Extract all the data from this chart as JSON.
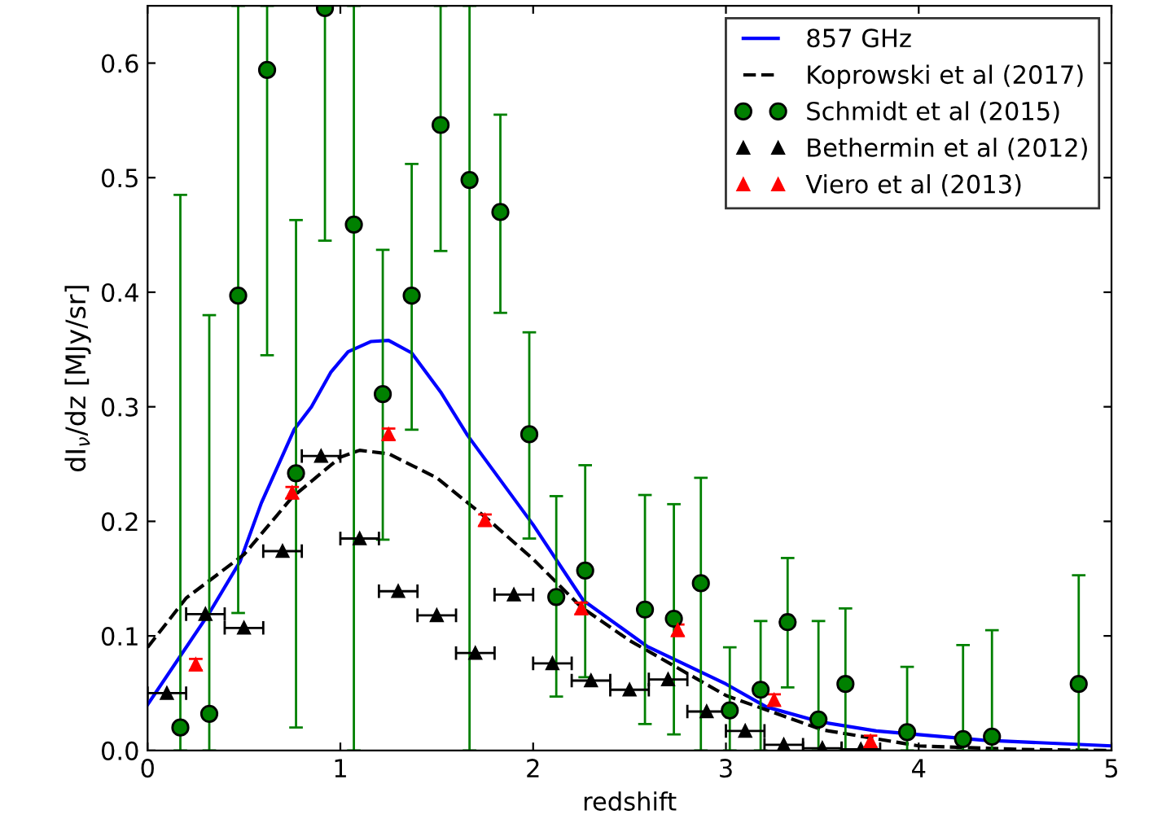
{
  "chart_data": {
    "type": "line",
    "xlabel": "redshift",
    "ylabel": "dI$_{ν}$/dz [MJy/sr]",
    "xlim": [
      0,
      5
    ],
    "ylim": [
      0,
      0.65
    ],
    "xticks": [
      0,
      1,
      2,
      3,
      4,
      5
    ],
    "yticks": [
      {
        "value": 0,
        "label": "0.0"
      },
      0.1,
      0.2,
      0.3,
      0.4,
      0.5,
      0.6
    ],
    "grid": false,
    "legend": "top right",
    "series": [
      {
        "name": "857 GHz",
        "color": "#0000ff",
        "line_style": "solid",
        "marker": "none",
        "x": [
          0,
          0.32,
          0.48,
          0.59,
          0.76,
          0.85,
          0.95,
          1.04,
          1.16,
          1.25,
          1.37,
          1.52,
          1.66,
          2.0,
          2.26,
          2.59,
          3.0,
          3.21,
          3.49,
          3.78,
          4.33,
          5
        ],
        "values": [
          0.04,
          0.12,
          0.165,
          0.216,
          0.28,
          0.3,
          0.33,
          0.348,
          0.357,
          0.358,
          0.347,
          0.313,
          0.275,
          0.197,
          0.131,
          0.091,
          0.058,
          0.038,
          0.025,
          0.017,
          0.009,
          0.004
        ]
      },
      {
        "name": "Koprowski et al (2017)",
        "color": "#000000",
        "line_style": "dashed",
        "marker": "none",
        "x": [
          0,
          0.2,
          0.5,
          0.75,
          1.0,
          1.1,
          1.25,
          1.5,
          1.75,
          2.0,
          2.25,
          2.5,
          2.75,
          3.0,
          3.5,
          4.0,
          4.5,
          5
        ],
        "values": [
          0.09,
          0.133,
          0.171,
          0.221,
          0.256,
          0.262,
          0.259,
          0.238,
          0.204,
          0.167,
          0.125,
          0.096,
          0.072,
          0.048,
          0.018,
          0.004,
          0.001,
          0.0
        ]
      },
      {
        "name": "Schmidt et al (2015)",
        "type": "scatter",
        "color": "#008000",
        "marker": "circle",
        "x": [
          0.17,
          0.32,
          0.47,
          0.62,
          0.77,
          0.92,
          1.07,
          1.22,
          1.37,
          1.52,
          1.67,
          1.83,
          1.98,
          2.12,
          2.27,
          2.58,
          2.73,
          2.87,
          3.02,
          3.18,
          3.32,
          3.48,
          3.62,
          3.94,
          4.23,
          4.38,
          4.83
        ],
        "values": [
          0.02,
          0.032,
          0.397,
          0.594,
          0.242,
          0.648,
          0.459,
          0.311,
          0.397,
          0.546,
          0.498,
          0.47,
          0.276,
          0.134,
          0.157,
          0.123,
          0.115,
          0.146,
          0.035,
          0.053,
          0.112,
          0.027,
          0.058,
          0.016,
          0.01,
          0.012,
          0.058
        ],
        "errors": [
          [
            0,
            0.485
          ],
          [
            0,
            0.38
          ],
          [
            0.12,
            0.65
          ],
          [
            0.345,
            0.65
          ],
          [
            0.02,
            0.463
          ],
          [
            0.445,
            0.65
          ],
          [
            0,
            0.65
          ],
          [
            0.184,
            0.437
          ],
          [
            0.28,
            0.512
          ],
          [
            0.436,
            0.65
          ],
          [
            0,
            0.65
          ],
          [
            0.382,
            0.555
          ],
          [
            0.185,
            0.365
          ],
          [
            0.047,
            0.222
          ],
          [
            0.064,
            0.249
          ],
          [
            0.023,
            0.223
          ],
          [
            0.014,
            0.215
          ],
          [
            0,
            0.238
          ],
          [
            0,
            0.09
          ],
          [
            0,
            0.113
          ],
          [
            0.055,
            0.168
          ],
          [
            0,
            0.113
          ],
          [
            0,
            0.124
          ],
          [
            0,
            0.073
          ],
          [
            0,
            0.092
          ],
          [
            0,
            0.105
          ],
          [
            0,
            0.153
          ]
        ]
      },
      {
        "name": "Bethermin et al (2012)",
        "type": "scatter",
        "color": "#000000",
        "marker": "triangle",
        "x": [
          0.1,
          0.3,
          0.5,
          0.7,
          0.9,
          1.1,
          1.3,
          1.5,
          1.7,
          1.9,
          2.1,
          2.3,
          2.5,
          2.7,
          2.9,
          3.1,
          3.3,
          3.5,
          3.7
        ],
        "values": [
          0.05,
          0.119,
          0.107,
          0.174,
          0.257,
          0.185,
          0.139,
          0.118,
          0.085,
          0.136,
          0.076,
          0.061,
          0.053,
          0.062,
          0.034,
          0.017,
          0.005,
          0.002,
          0.001
        ],
        "xerrors": [
          0.1,
          0.1,
          0.1,
          0.1,
          0.1,
          0.1,
          0.1,
          0.1,
          0.1,
          0.1,
          0.1,
          0.1,
          0.1,
          0.1,
          0.1,
          0.1,
          0.1,
          0.1,
          0.1
        ]
      },
      {
        "name": "Viero et al (2013)",
        "type": "scatter",
        "color": "#ff0000",
        "marker": "triangle",
        "x": [
          0.25,
          0.75,
          1.25,
          1.75,
          2.25,
          2.75,
          3.25,
          3.75
        ],
        "values": [
          0.075,
          0.225,
          0.276,
          0.201,
          0.124,
          0.105,
          0.044,
          0.008
        ],
        "errors": [
          0.005,
          0.005,
          0.005,
          0.005,
          0.005,
          0.005,
          0.005,
          0.005
        ]
      }
    ]
  }
}
